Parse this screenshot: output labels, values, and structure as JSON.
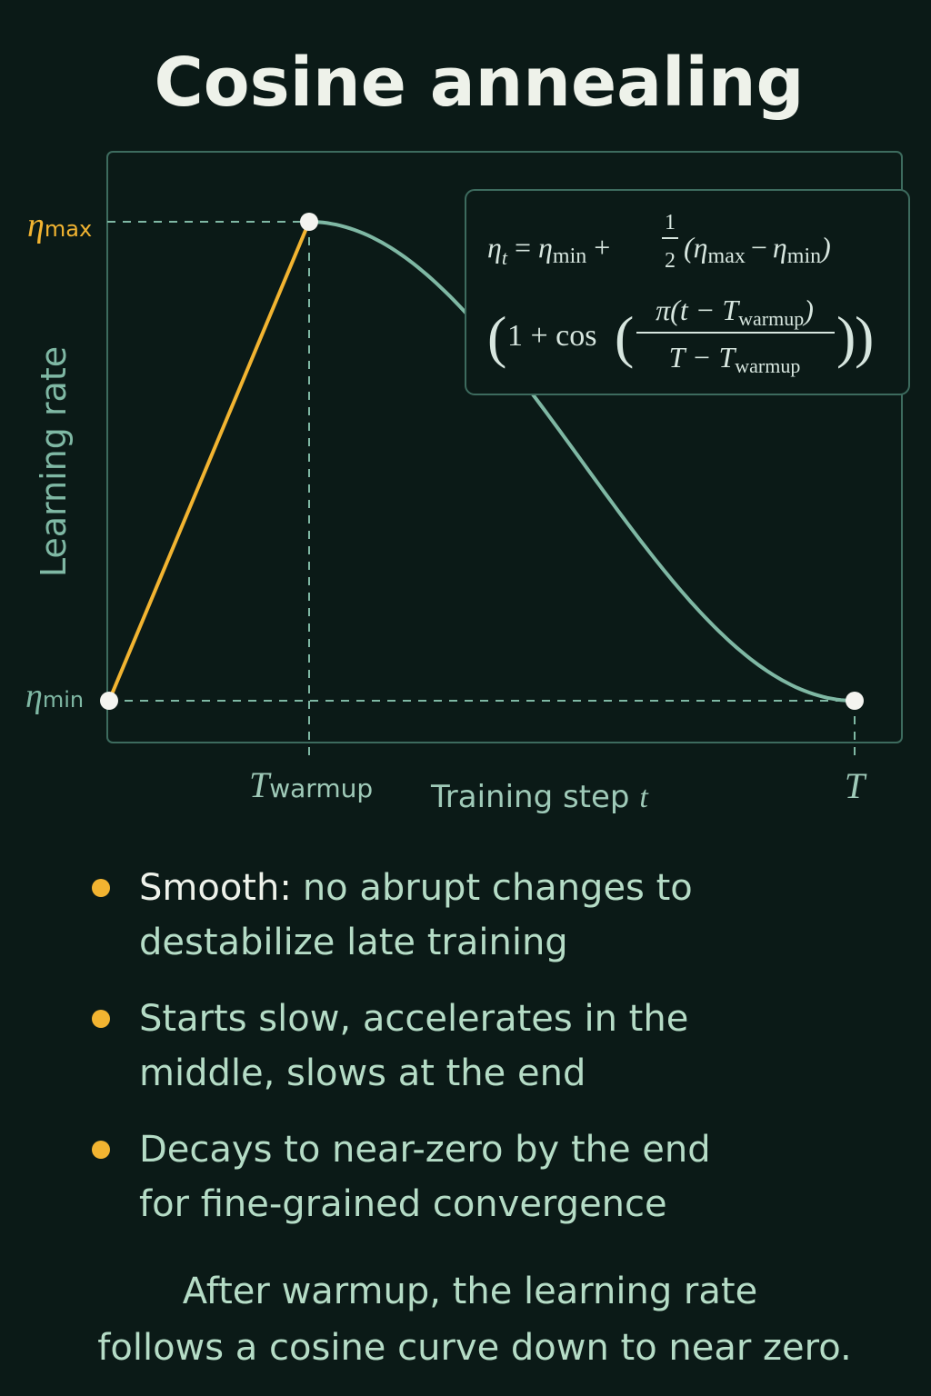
{
  "title": "Cosine annealing",
  "chart": {
    "y_axis_label": "Learning rate",
    "eta_max": {
      "symbol": "η",
      "sub": "max"
    },
    "eta_min": {
      "symbol": "η",
      "sub": "min"
    },
    "x_warmup": {
      "symbol": "T",
      "sub": "warmup"
    },
    "x_axis_label": {
      "text": "Training step ",
      "var": "t"
    },
    "x_end": "T",
    "formula": {
      "line1": [
        "η",
        "t",
        "=",
        "η",
        "min",
        "+",
        "1",
        "2",
        "(η",
        "max",
        "−",
        "η",
        "min",
        ")"
      ],
      "line2": [
        "(",
        "1 + cos",
        "(",
        "π(t − T",
        "warmup",
        ")",
        "T − T",
        "warmup",
        ")",
        ")"
      ]
    }
  },
  "bullets": [
    {
      "lead": "Smooth:",
      "lines": [
        "no abrupt changes to",
        "destabilize late training"
      ]
    },
    {
      "lead": "",
      "lines": [
        "Starts slow, accelerates in the",
        "middle, slows at the end"
      ]
    },
    {
      "lead": "",
      "lines": [
        "Decays to near-zero by the end",
        "for fine-grained convergence"
      ]
    }
  ],
  "caption": [
    "After warmup, the learning rate",
    "follows a cosine curve down to near zero."
  ]
}
